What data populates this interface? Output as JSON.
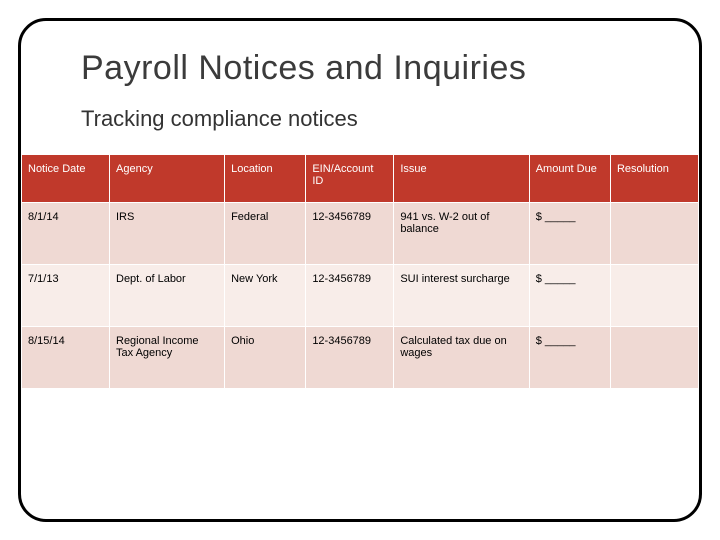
{
  "slide": {
    "title": "Payroll Notices and Inquiries",
    "subtitle": "Tracking compliance notices",
    "title_fontsize": 34,
    "subtitle_fontsize": 22,
    "title_color": "#3b3b3b",
    "frame_border_color": "#000000",
    "frame_border_radius": 28
  },
  "table": {
    "type": "table",
    "header_bg": "#c0392b",
    "header_text_color": "#ffffff",
    "row_bg_odd": "#efd9d3",
    "row_bg_even": "#f8ede9",
    "cell_fontsize": 11,
    "columns": [
      {
        "key": "notice_date",
        "label": "Notice Date",
        "width": "13%"
      },
      {
        "key": "agency",
        "label": "Agency",
        "width": "17%"
      },
      {
        "key": "location",
        "label": "Location",
        "width": "12%"
      },
      {
        "key": "ein",
        "label": "EIN/Account ID",
        "width": "13%"
      },
      {
        "key": "issue",
        "label": "Issue",
        "width": "20%"
      },
      {
        "key": "amount_due",
        "label": "Amount Due",
        "width": "12%"
      },
      {
        "key": "resolution",
        "label": "Resolution",
        "width": "13%"
      }
    ],
    "rows": [
      {
        "notice_date": "8/1/14",
        "agency": "IRS",
        "location": "Federal",
        "ein": "12-3456789",
        "issue": "941 vs. W-2 out of balance",
        "amount_due": "$ _____",
        "resolution": ""
      },
      {
        "notice_date": "7/1/13",
        "agency": "Dept. of Labor",
        "location": "New York",
        "ein": "12-3456789",
        "issue": "SUI interest surcharge",
        "amount_due": "$ _____",
        "resolution": ""
      },
      {
        "notice_date": "8/15/14",
        "agency": "Regional Income Tax Agency",
        "location": "Ohio",
        "ein": "12-3456789",
        "issue": "Calculated tax due on wages",
        "amount_due": "$ _____",
        "resolution": ""
      }
    ]
  }
}
